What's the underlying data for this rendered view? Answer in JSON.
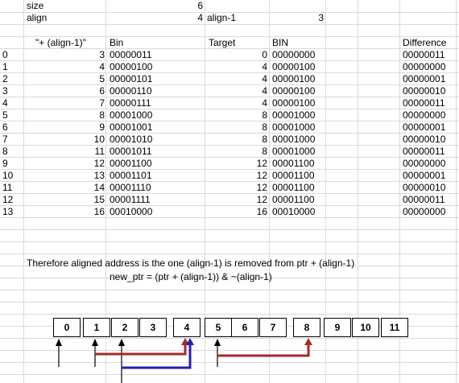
{
  "params": {
    "size_label": "size",
    "size_value": "6",
    "align_label": "align",
    "align_value": "4",
    "align_minus_label": "align-1",
    "align_minus_value": "3"
  },
  "headers": {
    "plus_align": "\"+ (align-1)\"",
    "bin": "Bin",
    "target": "Target",
    "target_bin": "BIN",
    "difference": "Difference"
  },
  "rows": [
    {
      "idx": "0",
      "val": "3",
      "bin": "00000011",
      "target": "0",
      "tbin": "00000000",
      "diff": "00000011"
    },
    {
      "idx": "1",
      "val": "4",
      "bin": "00000100",
      "target": "4",
      "tbin": "00000100",
      "diff": "00000000"
    },
    {
      "idx": "2",
      "val": "5",
      "bin": "00000101",
      "target": "4",
      "tbin": "00000100",
      "diff": "00000001"
    },
    {
      "idx": "3",
      "val": "6",
      "bin": "00000110",
      "target": "4",
      "tbin": "00000100",
      "diff": "00000010"
    },
    {
      "idx": "4",
      "val": "7",
      "bin": "00000111",
      "target": "4",
      "tbin": "00000100",
      "diff": "00000011"
    },
    {
      "idx": "5",
      "val": "8",
      "bin": "00001000",
      "target": "8",
      "tbin": "00001000",
      "diff": "00000000"
    },
    {
      "idx": "6",
      "val": "9",
      "bin": "00001001",
      "target": "8",
      "tbin": "00001000",
      "diff": "00000001"
    },
    {
      "idx": "7",
      "val": "10",
      "bin": "00001010",
      "target": "8",
      "tbin": "00001000",
      "diff": "00000010"
    },
    {
      "idx": "8",
      "val": "11",
      "bin": "00001011",
      "target": "8",
      "tbin": "00001000",
      "diff": "00000011"
    },
    {
      "idx": "9",
      "val": "12",
      "bin": "00001100",
      "target": "12",
      "tbin": "00001100",
      "diff": "00000000"
    },
    {
      "idx": "10",
      "val": "13",
      "bin": "00001101",
      "target": "12",
      "tbin": "00001100",
      "diff": "00000001"
    },
    {
      "idx": "11",
      "val": "14",
      "bin": "00001110",
      "target": "12",
      "tbin": "00001100",
      "diff": "00000010"
    },
    {
      "idx": "12",
      "val": "15",
      "bin": "00001111",
      "target": "12",
      "tbin": "00001100",
      "diff": "00000011"
    },
    {
      "idx": "13",
      "val": "16",
      "bin": "00010000",
      "target": "16",
      "tbin": "00010000",
      "diff": "00000000"
    }
  ],
  "notes": {
    "line1": "Therefore aligned address is the one (align-1) is removed from ptr + (align-1)",
    "line2": "new_ptr = (ptr + (align-1)) & ~(align-1)"
  },
  "memory_cells": [
    "0",
    "1",
    "2",
    "3",
    "4",
    "5",
    "6",
    "7",
    "8",
    "9",
    "10",
    "11"
  ],
  "colors": {
    "red_arrow": "#a52a2a",
    "blue_arrow": "#2222b0",
    "grid_line": "#dadada"
  }
}
